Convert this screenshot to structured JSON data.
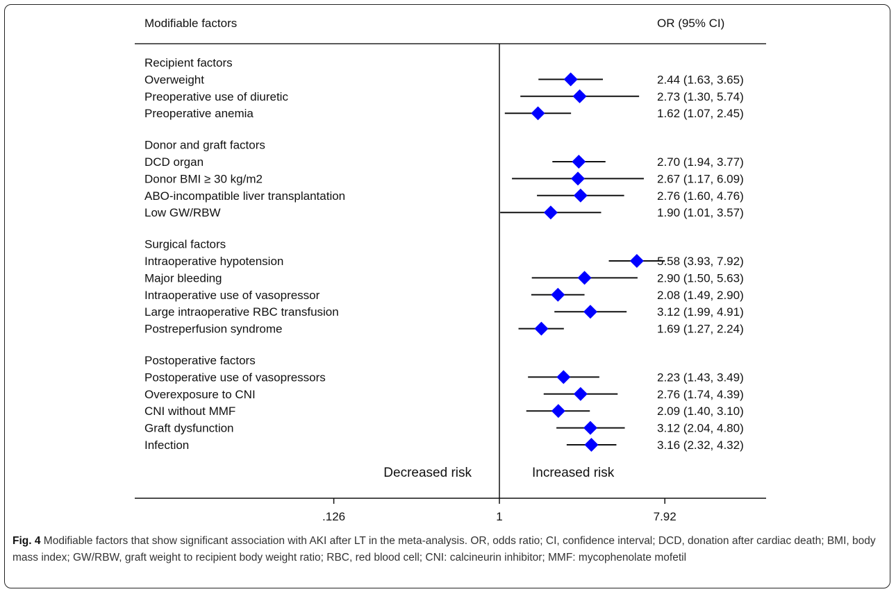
{
  "header": {
    "factor_label": "Modifiable factors",
    "or_label": "OR (95% CI)"
  },
  "chart_data": {
    "type": "forest",
    "scale": "log",
    "xlim": [
      0.126,
      7.92
    ],
    "x_ticks": [
      ".126",
      "1",
      "7.92"
    ],
    "x_tick_values": [
      0.126,
      1,
      7.92
    ],
    "reference_line": 1,
    "marker_color": "#0000ff",
    "left_annotation": "Decreased risk",
    "right_annotation": "Increased risk",
    "groups": [
      {
        "name": "Recipient factors",
        "rows": [
          {
            "label": "Overweight",
            "or": 2.44,
            "lo": 1.63,
            "hi": 3.65,
            "text": "2.44 (1.63, 3.65)"
          },
          {
            "label": "Preoperative use of diuretic",
            "or": 2.73,
            "lo": 1.3,
            "hi": 5.74,
            "text": "2.73 (1.30, 5.74)"
          },
          {
            "label": "Preoperative anemia",
            "or": 1.62,
            "lo": 1.07,
            "hi": 2.45,
            "text": "1.62 (1.07, 2.45)"
          }
        ]
      },
      {
        "name": "Donor and graft factors",
        "rows": [
          {
            "label": "DCD organ",
            "or": 2.7,
            "lo": 1.94,
            "hi": 3.77,
            "text": "2.70 (1.94, 3.77)"
          },
          {
            "label": "Donor BMI ≥ 30 kg/m2",
            "or": 2.67,
            "lo": 1.17,
            "hi": 6.09,
            "text": "2.67 (1.17, 6.09)"
          },
          {
            "label": "ABO-incompatible liver transplantation",
            "or": 2.76,
            "lo": 1.6,
            "hi": 4.76,
            "text": "2.76 (1.60, 4.76)"
          },
          {
            "label": "Low GW/RBW",
            "or": 1.9,
            "lo": 1.01,
            "hi": 3.57,
            "text": "1.90 (1.01, 3.57)"
          }
        ]
      },
      {
        "name": "Surgical factors",
        "rows": [
          {
            "label": "Intraoperative hypotension",
            "or": 5.58,
            "lo": 3.93,
            "hi": 7.92,
            "text": "5.58 (3.93, 7.92)"
          },
          {
            "label": "Major bleeding",
            "or": 2.9,
            "lo": 1.5,
            "hi": 5.63,
            "text": "2.90 (1.50, 5.63)"
          },
          {
            "label": "Intraoperative use of vasopressor",
            "or": 2.08,
            "lo": 1.49,
            "hi": 2.9,
            "text": "2.08 (1.49, 2.90)"
          },
          {
            "label": "Large intraoperative RBC transfusion",
            "or": 3.12,
            "lo": 1.99,
            "hi": 4.91,
            "text": "3.12 (1.99, 4.91)"
          },
          {
            "label": "Postreperfusion syndrome",
            "or": 1.69,
            "lo": 1.27,
            "hi": 2.24,
            "text": "1.69 (1.27, 2.24)"
          }
        ]
      },
      {
        "name": "Postoperative factors",
        "rows": [
          {
            "label": "Postoperative use of vasopressors",
            "or": 2.23,
            "lo": 1.43,
            "hi": 3.49,
            "text": "2.23 (1.43, 3.49)"
          },
          {
            "label": "Overexposure to CNI",
            "or": 2.76,
            "lo": 1.74,
            "hi": 4.39,
            "text": "2.76 (1.74, 4.39)"
          },
          {
            "label": "CNI without MMF",
            "or": 2.09,
            "lo": 1.4,
            "hi": 3.1,
            "text": "2.09 (1.40, 3.10)"
          },
          {
            "label": "Graft dysfunction",
            "or": 3.12,
            "lo": 2.04,
            "hi": 4.8,
            "text": "3.12 (2.04, 4.80)"
          },
          {
            "label": "Infection",
            "or": 3.16,
            "lo": 2.32,
            "hi": 4.32,
            "text": "3.16 (2.32, 4.32)"
          }
        ]
      }
    ]
  },
  "caption": {
    "fig_label": "Fig. 4",
    "text": " Modifiable factors that show significant association with AKI after LT in the meta-analysis. OR, odds ratio; CI, confidence interval; DCD, donation after cardiac death; BMI, body mass index; GW/RBW, graft weight to recipient body weight ratio; RBC, red blood cell; CNI: calcineurin inhibitor; MMF: mycophenolate mofetil"
  }
}
